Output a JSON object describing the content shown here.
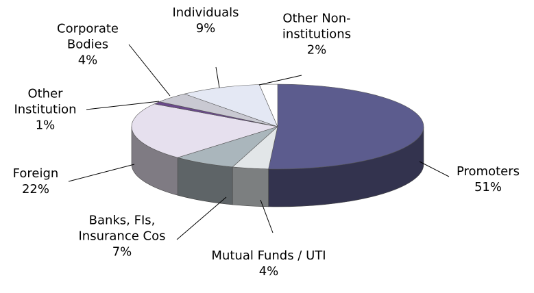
{
  "chart_data": {
    "type": "pie3d",
    "categories": [
      "Promoters",
      "Mutual Funds / UTI",
      "Banks, FIs, Insurance Cos",
      "Foreign",
      "Other Institution",
      "Corporate Bodies",
      "Individuals",
      "Other Non-institutions"
    ],
    "values": [
      51,
      4,
      7,
      22,
      1,
      4,
      9,
      2
    ],
    "value_labels": [
      "51%",
      "4%",
      "7%",
      "22%",
      "1%",
      "4%",
      "9%",
      "2%"
    ],
    "colors": [
      "#5c5c8e",
      "#e2e6e8",
      "#aab6bc",
      "#e6e0ee",
      "#6a4a8a",
      "#c9c9d2",
      "#e4e8f4",
      "#ffffff"
    ]
  }
}
